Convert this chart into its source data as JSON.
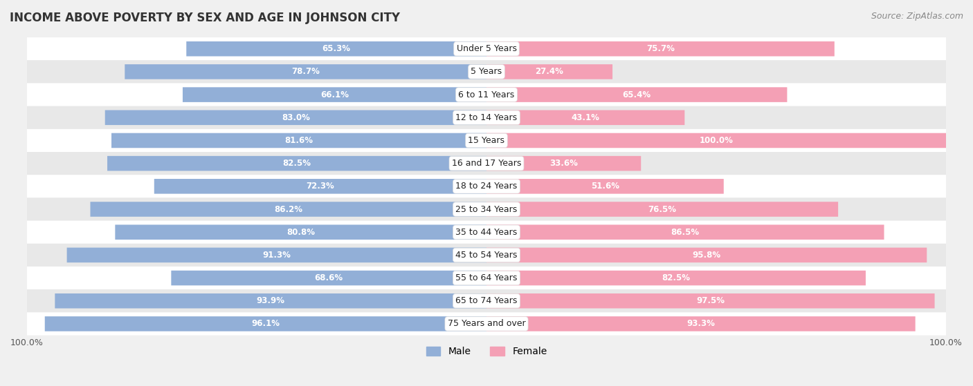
{
  "title": "INCOME ABOVE POVERTY BY SEX AND AGE IN JOHNSON CITY",
  "source": "Source: ZipAtlas.com",
  "categories": [
    "Under 5 Years",
    "5 Years",
    "6 to 11 Years",
    "12 to 14 Years",
    "15 Years",
    "16 and 17 Years",
    "18 to 24 Years",
    "25 to 34 Years",
    "35 to 44 Years",
    "45 to 54 Years",
    "55 to 64 Years",
    "65 to 74 Years",
    "75 Years and over"
  ],
  "male_values": [
    65.3,
    78.7,
    66.1,
    83.0,
    81.6,
    82.5,
    72.3,
    86.2,
    80.8,
    91.3,
    68.6,
    93.9,
    96.1
  ],
  "female_values": [
    75.7,
    27.4,
    65.4,
    43.1,
    100.0,
    33.6,
    51.6,
    76.5,
    86.5,
    95.8,
    82.5,
    97.5,
    93.3
  ],
  "male_color": "#92afd7",
  "female_color": "#f4a0b5",
  "male_label": "Male",
  "female_label": "Female",
  "background_color": "#f0f0f0",
  "row_colors": [
    "#ffffff",
    "#e8e8e8"
  ],
  "max_val": 100.0,
  "label_color": "#ffffff",
  "title_fontsize": 12,
  "source_fontsize": 9,
  "bar_label_fontsize": 8.5,
  "cat_label_fontsize": 9,
  "legend_fontsize": 10,
  "axis_fontsize": 9
}
